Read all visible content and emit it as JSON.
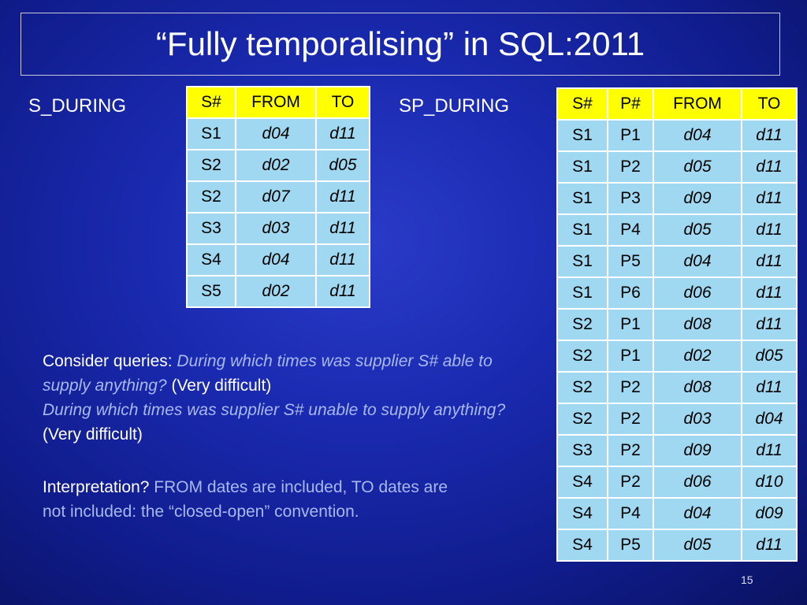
{
  "title": "“Fully temporalising” in SQL:2011",
  "s_during": {
    "label": "S_DURING",
    "headers": [
      "S#",
      "FROM",
      "TO"
    ],
    "rows": [
      [
        "S1",
        "d04",
        "d11"
      ],
      [
        "S2",
        "d02",
        "d05"
      ],
      [
        "S2",
        "d07",
        "d11"
      ],
      [
        "S3",
        "d03",
        "d11"
      ],
      [
        "S4",
        "d04",
        "d11"
      ],
      [
        "S5",
        "d02",
        "d11"
      ]
    ]
  },
  "sp_during": {
    "label": "SP_DURING",
    "headers": [
      "S#",
      "P#",
      "FROM",
      "TO"
    ],
    "rows": [
      [
        "S1",
        "P1",
        "d04",
        "d11"
      ],
      [
        "S1",
        "P2",
        "d05",
        "d11"
      ],
      [
        "S1",
        "P3",
        "d09",
        "d11"
      ],
      [
        "S1",
        "P4",
        "d05",
        "d11"
      ],
      [
        "S1",
        "P5",
        "d04",
        "d11"
      ],
      [
        "S1",
        "P6",
        "d06",
        "d11"
      ],
      [
        "S2",
        "P1",
        "d08",
        "d11"
      ],
      [
        "S2",
        "P1",
        "d02",
        "d05"
      ],
      [
        "S2",
        "P2",
        "d08",
        "d11"
      ],
      [
        "S2",
        "P2",
        "d03",
        "d04"
      ],
      [
        "S3",
        "P2",
        "d09",
        "d11"
      ],
      [
        "S4",
        "P2",
        "d06",
        "d10"
      ],
      [
        "S4",
        "P4",
        "d04",
        "d09"
      ],
      [
        "S4",
        "P5",
        "d05",
        "d11"
      ]
    ]
  },
  "queries": {
    "intro": "Consider queries: ",
    "q1": "During which times was supplier S#  able to supply anything?",
    "q1_note": " (Very difficult)",
    "q2": " During which times was supplier S#  unable to supply anything?",
    "q2_note": " (Very difficult)"
  },
  "interpretation": {
    "lead": "Interpretation? ",
    "text": "FROM dates are included, TO dates are not included: the “closed-open” convention."
  },
  "page_number": "15"
}
